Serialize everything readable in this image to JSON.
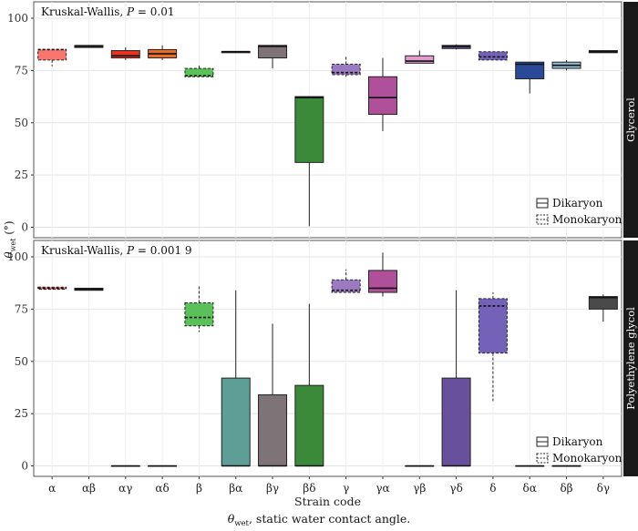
{
  "caption": {
    "symbol": "θ",
    "subscript": "wet",
    "text": ", static water contact angle."
  },
  "ylabel_parts": {
    "symbol": "θ",
    "subscript": "wet",
    "unit": "(°)"
  },
  "chart_data": {
    "type": "box",
    "xlabel": "Strain code",
    "categories": [
      "α",
      "αβ",
      "αγ",
      "αδ",
      "β",
      "βα",
      "βγ",
      "βδ",
      "γ",
      "γα",
      "γβ",
      "γδ",
      "δ",
      "δα",
      "δβ",
      "δγ"
    ],
    "yticks": [
      0,
      25,
      50,
      75,
      100
    ],
    "ylim": [
      -5,
      103
    ],
    "grid": true,
    "legend": {
      "position": "bottom-right",
      "entries": [
        {
          "label": "Dikaryon",
          "line": "solid"
        },
        {
          "label": "Monokaryon",
          "line": "dashed"
        }
      ]
    },
    "colors": [
      "#f8766d",
      "#e7a398",
      "#e8331f",
      "#e96b2a",
      "#5cc05a",
      "#5d9e96",
      "#7e7478",
      "#3a8a3a",
      "#9a7ac0",
      "#b1509a",
      "#e39cd0",
      "#68509c",
      "#7362b8",
      "#2a4a98",
      "#8eb8d0",
      "#4a4a4a"
    ],
    "panels": [
      {
        "strip_label": "Glycerol",
        "annotation_prefix": "Kruskal-Wallis, ",
        "annotation_var": "P",
        "annotation_value": " = 0.01",
        "boxes": [
          {
            "category": "α",
            "q1": 80,
            "median": 85,
            "q3": 85,
            "whisker_low": 77,
            "whisker_high": 85,
            "line": "dashed"
          },
          {
            "category": "αβ",
            "q1": 86,
            "median": 86.5,
            "q3": 87,
            "whisker_low": 86,
            "whisker_high": 87,
            "line": "solid"
          },
          {
            "category": "αγ",
            "q1": 81,
            "median": 82,
            "q3": 84.5,
            "whisker_low": 80,
            "whisker_high": 86,
            "line": "solid"
          },
          {
            "category": "αδ",
            "q1": 81,
            "median": 83,
            "q3": 85,
            "whisker_low": 80,
            "whisker_high": 87,
            "line": "solid"
          },
          {
            "category": "β",
            "q1": 72,
            "median": 72.5,
            "q3": 76,
            "whisker_low": 72,
            "whisker_high": 78,
            "line": "dashed"
          },
          {
            "category": "βα",
            "q1": 83.5,
            "median": 84,
            "q3": 84,
            "whisker_low": 83.5,
            "whisker_high": 84,
            "line": "solid"
          },
          {
            "category": "βγ",
            "q1": 81,
            "median": 86.5,
            "q3": 87,
            "whisker_low": 76,
            "whisker_high": 87,
            "line": "solid"
          },
          {
            "category": "βδ",
            "q1": 31,
            "median": 62,
            "q3": 62.5,
            "whisker_low": 0.5,
            "whisker_high": 62.5,
            "line": "solid"
          },
          {
            "category": "γ",
            "q1": 73,
            "median": 74,
            "q3": 78,
            "whisker_low": 72,
            "whisker_high": 82,
            "line": "dashed"
          },
          {
            "category": "γα",
            "q1": 54,
            "median": 62,
            "q3": 72,
            "whisker_low": 46,
            "whisker_high": 81,
            "line": "solid"
          },
          {
            "category": "γβ",
            "q1": 78.5,
            "median": 79.5,
            "q3": 82,
            "whisker_low": 78.5,
            "whisker_high": 84.5,
            "line": "solid"
          },
          {
            "category": "γδ",
            "q1": 85.5,
            "median": 86.5,
            "q3": 87,
            "whisker_low": 85,
            "whisker_high": 87.5,
            "line": "solid"
          },
          {
            "category": "δ",
            "q1": 80,
            "median": 81.5,
            "q3": 84,
            "whisker_low": 80,
            "whisker_high": 84,
            "line": "dashed"
          },
          {
            "category": "δα",
            "q1": 71,
            "median": 78,
            "q3": 79,
            "whisker_low": 64,
            "whisker_high": 79,
            "line": "solid"
          },
          {
            "category": "δβ",
            "q1": 76,
            "median": 77.5,
            "q3": 79,
            "whisker_low": 75,
            "whisker_high": 80,
            "line": "solid"
          },
          {
            "category": "δγ",
            "q1": 83.5,
            "median": 84,
            "q3": 84.5,
            "whisker_low": 83.5,
            "whisker_high": 84.5,
            "line": "solid"
          }
        ]
      },
      {
        "strip_label": "Polyethylene glycol",
        "annotation_prefix": "Kruskal-Wallis, ",
        "annotation_var": "P",
        "annotation_value": " = 0.001 9",
        "boxes": [
          {
            "category": "α",
            "q1": 84.5,
            "median": 85,
            "q3": 85.5,
            "whisker_low": 84.5,
            "whisker_high": 85.5,
            "line": "dashed"
          },
          {
            "category": "αβ",
            "q1": 84,
            "median": 84.5,
            "q3": 85,
            "whisker_low": 84,
            "whisker_high": 85,
            "line": "solid"
          },
          {
            "category": "αγ",
            "q1": 0,
            "median": 0,
            "q3": 0,
            "whisker_low": 0,
            "whisker_high": 0,
            "line": "solid"
          },
          {
            "category": "αδ",
            "q1": 0,
            "median": 0,
            "q3": 0,
            "whisker_low": 0,
            "whisker_high": 0,
            "line": "solid"
          },
          {
            "category": "β",
            "q1": 67,
            "median": 71,
            "q3": 78,
            "whisker_low": 64,
            "whisker_high": 86,
            "line": "dashed"
          },
          {
            "category": "βα",
            "q1": 0,
            "median": 0,
            "q3": 42,
            "whisker_low": 0,
            "whisker_high": 84,
            "line": "solid"
          },
          {
            "category": "βγ",
            "q1": 0,
            "median": 0,
            "q3": 34,
            "whisker_low": 0,
            "whisker_high": 68,
            "line": "solid"
          },
          {
            "category": "βδ",
            "q1": 0,
            "median": 0,
            "q3": 38.5,
            "whisker_low": 0,
            "whisker_high": 77.5,
            "line": "solid"
          },
          {
            "category": "γ",
            "q1": 83,
            "median": 84,
            "q3": 89,
            "whisker_low": 83,
            "whisker_high": 94,
            "line": "dashed"
          },
          {
            "category": "γα",
            "q1": 83,
            "median": 85,
            "q3": 93.5,
            "whisker_low": 81,
            "whisker_high": 102,
            "line": "solid"
          },
          {
            "category": "γβ",
            "q1": 0,
            "median": 0,
            "q3": 0,
            "whisker_low": 0,
            "whisker_high": 0,
            "line": "solid"
          },
          {
            "category": "γδ",
            "q1": 0,
            "median": 0,
            "q3": 42,
            "whisker_low": 0,
            "whisker_high": 84,
            "line": "solid"
          },
          {
            "category": "δ",
            "q1": 54,
            "median": 76.5,
            "q3": 80,
            "whisker_low": 31,
            "whisker_high": 83,
            "line": "dashed"
          },
          {
            "category": "δα",
            "q1": 0,
            "median": 0,
            "q3": 0,
            "whisker_low": 0,
            "whisker_high": 0,
            "line": "solid"
          },
          {
            "category": "δβ",
            "q1": 0,
            "median": 0,
            "q3": 0,
            "whisker_low": 0,
            "whisker_high": 0,
            "line": "solid"
          },
          {
            "category": "δγ",
            "q1": 75,
            "median": 80.5,
            "q3": 81,
            "whisker_low": 69,
            "whisker_high": 82,
            "line": "solid"
          }
        ]
      }
    ]
  }
}
